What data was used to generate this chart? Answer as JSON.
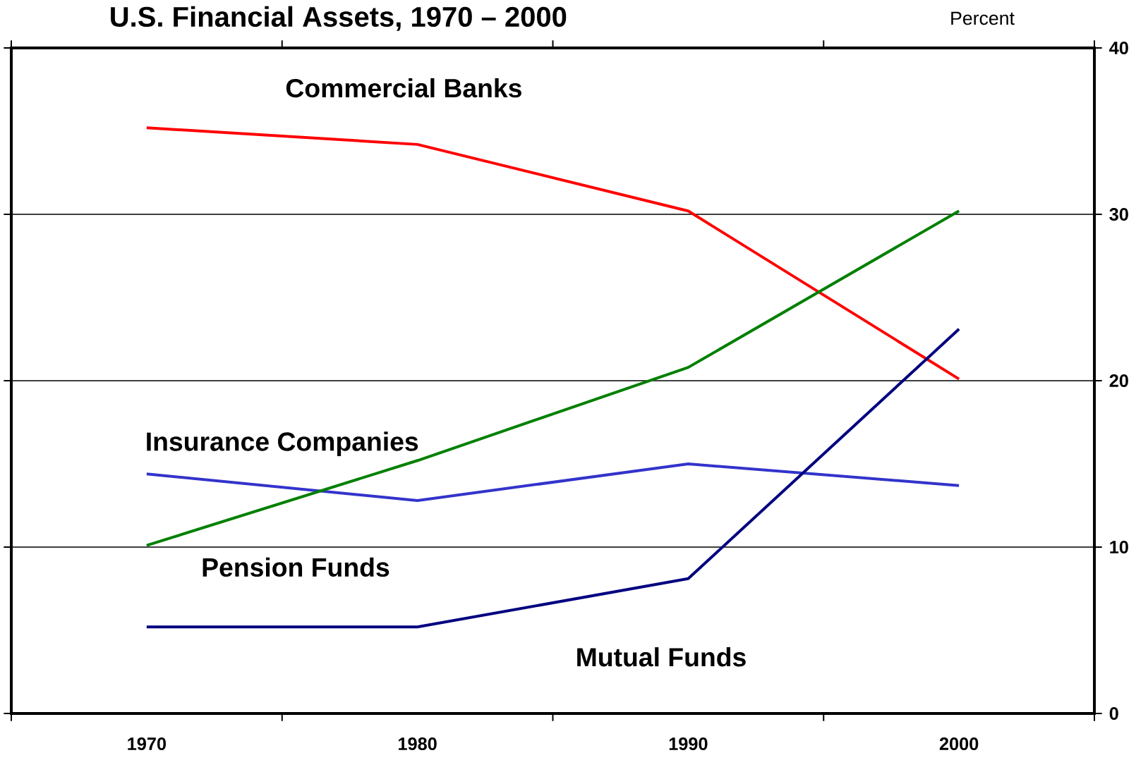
{
  "chart_data": {
    "type": "line",
    "title": "U.S. Financial Assets, 1970 – 2000",
    "ylabel": "Percent",
    "categories": [
      "1970",
      "1980",
      "1990",
      "2000"
    ],
    "series": [
      {
        "name": "Commercial Banks",
        "color": "#ff0000",
        "values": [
          35.2,
          34.2,
          30.2,
          20.1
        ]
      },
      {
        "name": "Insurance Companies",
        "color": "#3333cc",
        "values": [
          14.4,
          12.8,
          15.0,
          13.7
        ]
      },
      {
        "name": "Pension Funds",
        "color": "#008000",
        "values": [
          10.1,
          15.2,
          20.8,
          30.2
        ]
      },
      {
        "name": "Mutual Funds",
        "color": "#000080",
        "values": [
          5.2,
          5.2,
          8.1,
          23.1
        ]
      }
    ],
    "ylim": [
      0,
      40
    ],
    "yticks": [
      0,
      10,
      20,
      30,
      40
    ],
    "grid": "y",
    "legend": false,
    "marker": "none",
    "line_style": "solid"
  }
}
